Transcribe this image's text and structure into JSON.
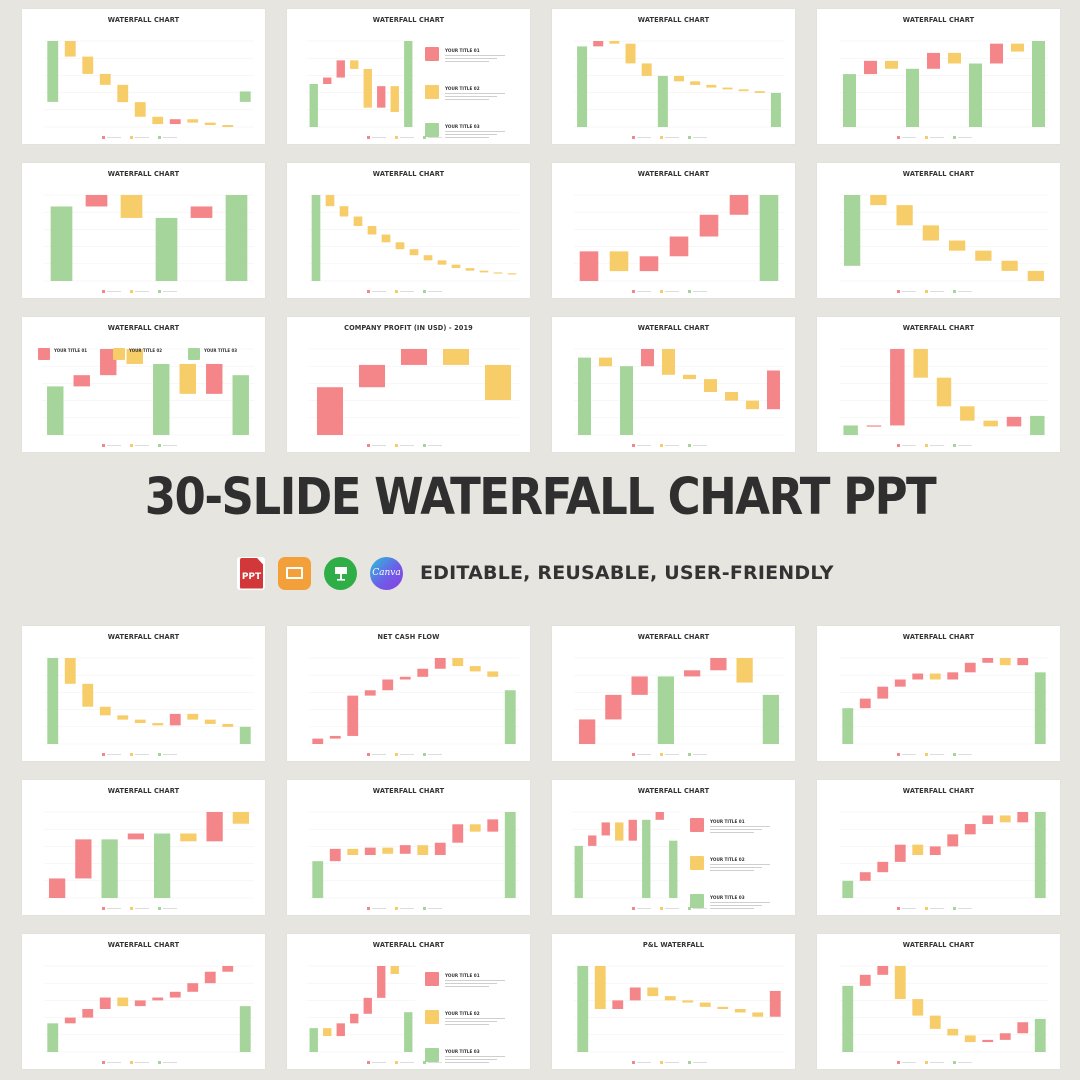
{
  "headline": "30-SLIDE WATERFALL CHART PPT",
  "tagline": "EDITABLE, REUSABLE, USER-FRIENDLY",
  "app_icons": [
    {
      "name": "powerpoint-icon",
      "label": "PPT",
      "color": "#d2373a"
    },
    {
      "name": "google-slides-icon",
      "label": "",
      "color": "#f4a03a"
    },
    {
      "name": "keynote-icon",
      "label": "",
      "color": "#2fae48"
    },
    {
      "name": "canva-icon",
      "label": "Canva",
      "color": "#6d5ee8"
    }
  ],
  "colors": {
    "increase": "#f4868a",
    "decrease": "#f7cd6a",
    "total": "#a6d59c",
    "background": "#e6e5e0"
  },
  "slides_top": [
    {
      "title": "WATERFALL CHART",
      "chart_data": {
        "type": "bar",
        "values": [
          2500,
          -640,
          -710,
          -450,
          -710,
          -600,
          -300,
          200,
          -140,
          -100,
          -80,
          430
        ],
        "totals": [
          0,
          11
        ]
      }
    },
    {
      "title": "WATERFALL CHART",
      "chart_data": {
        "type": "bar",
        "values": [
          100,
          15,
          40,
          -20,
          -90,
          50,
          -60,
          200
        ],
        "totals": [
          0,
          7
        ]
      },
      "side": [
        "YOUR TITLE 01",
        "YOUR TITLE 02",
        "YOUR TITLE 03"
      ]
    },
    {
      "title": "WATERFALL CHART",
      "chart_data": {
        "type": "bar",
        "values": [
          900,
          60,
          -30,
          -220,
          -140,
          600,
          -60,
          -40,
          -30,
          -20,
          -20,
          -20,
          380
        ],
        "totals": [
          0,
          5,
          12
        ]
      }
    },
    {
      "title": "WATERFALL CHART",
      "chart_data": {
        "type": "bar",
        "values": [
          400,
          100,
          -60,
          500,
          120,
          -80,
          650,
          150,
          -60,
          650
        ],
        "totals": [
          0,
          3,
          6,
          9
        ]
      }
    },
    {
      "title": "WATERFALL CHART",
      "chart_data": {
        "type": "bar",
        "values": [
          260,
          40,
          -80,
          220,
          40,
          300
        ],
        "totals": [
          0,
          3,
          5
        ]
      }
    },
    {
      "title": "WATERFALL CHART",
      "chart_data": {
        "type": "bar",
        "values": [
          10000,
          -1300,
          -1200,
          -1100,
          -1000,
          -900,
          -800,
          -700,
          -600,
          -500,
          -400,
          -300,
          -200,
          -100,
          -60
        ],
        "totals": [
          0
        ]
      }
    },
    {
      "title": "WATERFALL CHART",
      "chart_data": {
        "type": "bar",
        "values": [
          300,
          -200,
          150,
          200,
          220,
          200,
          400
        ],
        "totals": [
          6
        ]
      }
    },
    {
      "title": "WATERFALL CHART",
      "chart_data": {
        "type": "bar",
        "values": [
          700,
          -100,
          -200,
          -150,
          -100,
          -100,
          -100,
          -100
        ],
        "totals": [
          0
        ]
      }
    },
    {
      "title": "WATERFALL CHART",
      "chart_data": {
        "type": "bar",
        "values": [
          130,
          30,
          70,
          -40,
          150,
          -80,
          80,
          160
        ],
        "totals": [
          0,
          4,
          7
        ]
      },
      "side": [
        "YOUR TITLE 01",
        "YOUR TITLE 02",
        "YOUR TITLE 03"
      ]
    },
    {
      "title": "COMPANY PROFIT (IN USD) - 2019",
      "chart_data": {
        "type": "bar",
        "values": [
          300,
          140,
          100,
          -100,
          -220
        ],
        "totals": []
      }
    },
    {
      "title": "WATERFALL CHART",
      "chart_data": {
        "type": "bar",
        "values": [
          900,
          -100,
          800,
          200,
          -300,
          -50,
          -150,
          -100,
          -100,
          450
        ],
        "totals": [
          0,
          2
        ]
      }
    },
    {
      "title": "WATERFALL CHART",
      "chart_data": {
        "type": "bar",
        "values": [
          100,
          0,
          800,
          -300,
          -300,
          -150,
          -60,
          100,
          200
        ],
        "totals": [
          0,
          8
        ]
      }
    }
  ],
  "slides_bottom": [
    {
      "title": "WATERFALL CHART",
      "chart_data": {
        "type": "bar",
        "values": [
          3000,
          -900,
          -800,
          -300,
          -150,
          -120,
          -80,
          400,
          -200,
          -150,
          -100,
          600
        ],
        "totals": [
          0,
          11
        ]
      }
    },
    {
      "title": "NET CASH FLOW",
      "chart_data": {
        "type": "bar",
        "values": [
          20,
          10,
          150,
          20,
          40,
          10,
          30,
          40,
          -30,
          -20,
          -20,
          200
        ],
        "totals": [
          11
        ]
      }
    },
    {
      "title": "WATERFALL CHART",
      "chart_data": {
        "type": "bar",
        "values": [
          200,
          200,
          150,
          500,
          50,
          100,
          -200,
          400
        ],
        "totals": [
          3,
          7
        ]
      }
    },
    {
      "title": "WATERFALL CHART",
      "chart_data": {
        "type": "bar",
        "values": [
          300,
          80,
          100,
          60,
          50,
          -50,
          60,
          80,
          40,
          -60,
          60,
          600
        ],
        "totals": [
          0,
          11
        ]
      }
    },
    {
      "title": "WATERFALL CHART",
      "chart_data": {
        "type": "bar",
        "values": [
          100,
          200,
          -100,
          30,
          250,
          -40,
          150,
          -60
        ],
        "totals": [
          2,
          4
        ]
      }
    },
    {
      "title": "WATERFALL CHART",
      "chart_data": {
        "type": "bar",
        "values": [
          300,
          100,
          -50,
          60,
          -50,
          70,
          -80,
          100,
          150,
          -60,
          100,
          700
        ],
        "totals": [
          0,
          11
        ]
      }
    },
    {
      "title": "WATERFALL CHART",
      "chart_data": {
        "type": "bar",
        "values": [
          200,
          40,
          50,
          -70,
          80,
          200,
          30,
          220
        ],
        "totals": [
          0,
          5,
          7
        ]
      },
      "side": [
        "YOUR TITLE 01",
        "YOUR TITLE 02",
        "YOUR TITLE 03"
      ]
    },
    {
      "title": "WATERFALL CHART",
      "chart_data": {
        "type": "bar",
        "values": [
          100,
          50,
          60,
          100,
          -60,
          50,
          70,
          60,
          50,
          -40,
          60,
          500
        ],
        "totals": [
          0,
          11
        ]
      }
    },
    {
      "title": "WATERFALL CHART",
      "chart_data": {
        "type": "bar",
        "values": [
          500,
          100,
          150,
          200,
          -150,
          100,
          50,
          100,
          150,
          200,
          100,
          800
        ],
        "totals": [
          0,
          11
        ]
      }
    },
    {
      "title": "WATERFALL CHART",
      "chart_data": {
        "type": "bar",
        "values": [
          150,
          -50,
          80,
          60,
          100,
          200,
          -50,
          250
        ],
        "totals": [
          0,
          7
        ]
      },
      "side": [
        "YOUR TITLE 01",
        "YOUR TITLE 02",
        "YOUR TITLE 03"
      ]
    },
    {
      "title": "P&L WATERFALL",
      "chart_data": {
        "type": "bar",
        "values": [
          2000,
          -1000,
          200,
          300,
          -200,
          -100,
          -50,
          -100,
          -50,
          -80,
          -100,
          600
        ],
        "totals": [
          0
        ]
      }
    },
    {
      "title": "WATERFALL CHART",
      "chart_data": {
        "type": "bar",
        "values": [
          600,
          100,
          80,
          -300,
          -150,
          -120,
          -60,
          -60,
          20,
          60,
          100,
          300
        ],
        "totals": [
          0,
          11
        ]
      }
    }
  ]
}
